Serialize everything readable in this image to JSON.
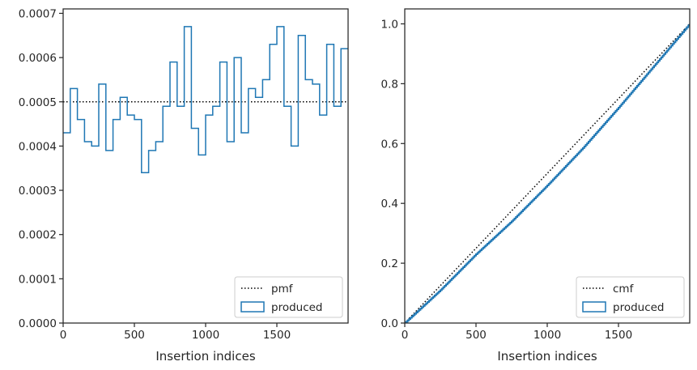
{
  "chart_data": [
    {
      "type": "step",
      "xlabel": "Insertion indices",
      "ylabel": "",
      "xlim": [
        0,
        2000
      ],
      "ylim": [
        0,
        0.00071
      ],
      "xticks": [
        0,
        500,
        1000,
        1500
      ],
      "xtick_labels": [
        "0",
        "500",
        "1000",
        "1500"
      ],
      "yticks": [
        0,
        0.0001,
        0.0002,
        0.0003,
        0.0004,
        0.0005,
        0.0006,
        0.0007
      ],
      "ytick_labels": [
        "0.0000",
        "0.0001",
        "0.0002",
        "0.0003",
        "0.0004",
        "0.0005",
        "0.0006",
        "0.0007"
      ],
      "legend_position": "lower-right",
      "series": [
        {
          "name": "pmf",
          "style": "dotted",
          "color": "#000000",
          "x": [
            0,
            2000
          ],
          "y": [
            0.0005,
            0.0005
          ]
        },
        {
          "name": "produced",
          "style": "step-histogram",
          "color": "#1f77b4",
          "bin_width": 50,
          "bin_edges_start": 0,
          "values": [
            0.00043,
            0.00053,
            0.00046,
            0.00041,
            0.0004,
            0.00054,
            0.00039,
            0.00046,
            0.00051,
            0.00047,
            0.00046,
            0.00034,
            0.00039,
            0.00041,
            0.00049,
            0.00059,
            0.00049,
            0.00067,
            0.00044,
            0.00038,
            0.00047,
            0.00049,
            0.00059,
            0.00041,
            0.0006,
            0.00043,
            0.00053,
            0.00051,
            0.00055,
            0.00063,
            0.00067,
            0.00049,
            0.0004,
            0.00065,
            0.00055,
            0.00054,
            0.00047,
            0.00063,
            0.00049,
            0.00062
          ]
        }
      ]
    },
    {
      "type": "line",
      "xlabel": "Insertion indices",
      "ylabel": "",
      "xlim": [
        0,
        2000
      ],
      "ylim": [
        0,
        1.05
      ],
      "xticks": [
        0,
        500,
        1000,
        1500
      ],
      "xtick_labels": [
        "0",
        "500",
        "1000",
        "1500"
      ],
      "yticks": [
        0,
        0.2,
        0.4,
        0.6,
        0.8,
        1.0
      ],
      "ytick_labels": [
        "0.0",
        "0.2",
        "0.4",
        "0.6",
        "0.8",
        "1.0"
      ],
      "legend_position": "lower-right",
      "series": [
        {
          "name": "cmf",
          "style": "dotted",
          "color": "#000000",
          "x": [
            0,
            2000
          ],
          "y": [
            0,
            1.0
          ]
        },
        {
          "name": "produced",
          "style": "solid",
          "color": "#1f77b4",
          "x": [
            0,
            250,
            500,
            750,
            1000,
            1250,
            1500,
            1750,
            2000
          ],
          "y": [
            0,
            0.11,
            0.23,
            0.34,
            0.46,
            0.585,
            0.72,
            0.86,
            1.0
          ]
        }
      ]
    }
  ]
}
